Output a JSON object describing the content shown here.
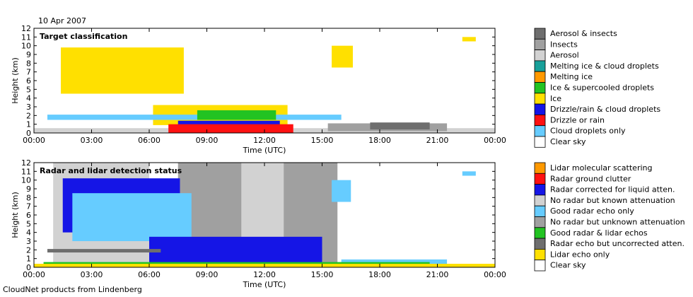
{
  "header": {
    "date": "10 Apr 2007"
  },
  "footer": {
    "credit": "CloudNet products from Lindenberg"
  },
  "chart_data": [
    {
      "type": "heatmap",
      "title": "Target classification",
      "xlabel": "Time (UTC)",
      "ylabel": "Height (km)",
      "xlim": [
        0,
        24
      ],
      "ylim": [
        0,
        12
      ],
      "x_ticks": [
        "00:00",
        "03:00",
        "06:00",
        "09:00",
        "12:00",
        "15:00",
        "18:00",
        "21:00",
        "00:00"
      ],
      "y_ticks": [
        "0",
        "1",
        "2",
        "3",
        "4",
        "5",
        "6",
        "7",
        "8",
        "9",
        "10",
        "11",
        "12"
      ],
      "legend": [
        {
          "label": "Aerosol & insects",
          "color": "#6e6e6e"
        },
        {
          "label": "Insects",
          "color": "#a0a0a0"
        },
        {
          "label": "Aerosol",
          "color": "#d2d2d2"
        },
        {
          "label": "Melting ice & cloud droplets",
          "color": "#18a09a"
        },
        {
          "label": "Melting ice",
          "color": "#ff9900"
        },
        {
          "label": "Ice & supercooled droplets",
          "color": "#22c322"
        },
        {
          "label": "Ice",
          "color": "#ffe000"
        },
        {
          "label": "Drizzle/rain & cloud droplets",
          "color": "#1515e6"
        },
        {
          "label": "Drizzle or rain",
          "color": "#ff1111"
        },
        {
          "label": "Cloud droplets only",
          "color": "#66ccff"
        },
        {
          "label": "Clear sky",
          "color": "#ffffff"
        }
      ],
      "regions": [
        {
          "class": "Aerosol",
          "t0": 0.0,
          "t1": 24.0,
          "h0": 0.05,
          "h1": 0.55
        },
        {
          "class": "Ice",
          "t0": 1.4,
          "t1": 7.8,
          "h0": 4.5,
          "h1": 9.8
        },
        {
          "class": "Ice",
          "t0": 6.2,
          "t1": 13.2,
          "h0": 0.9,
          "h1": 3.2
        },
        {
          "class": "Ice",
          "t0": 15.5,
          "t1": 16.6,
          "h0": 7.5,
          "h1": 10.0
        },
        {
          "class": "Ice",
          "t0": 22.3,
          "t1": 23.0,
          "h0": 10.5,
          "h1": 11.0
        },
        {
          "class": "Cloud droplets only",
          "t0": 0.7,
          "t1": 16.0,
          "h0": 1.5,
          "h1": 2.1
        },
        {
          "class": "Drizzle/rain & cloud droplets",
          "t0": 7.5,
          "t1": 12.8,
          "h0": 0.3,
          "h1": 1.4
        },
        {
          "class": "Drizzle or rain",
          "t0": 7.0,
          "t1": 13.5,
          "h0": 0.0,
          "h1": 1.0
        },
        {
          "class": "Ice & supercooled droplets",
          "t0": 8.5,
          "t1": 12.6,
          "h0": 1.5,
          "h1": 2.6
        },
        {
          "class": "Insects",
          "t0": 15.3,
          "t1": 21.5,
          "h0": 0.2,
          "h1": 1.1
        },
        {
          "class": "Aerosol & insects",
          "t0": 17.5,
          "t1": 20.6,
          "h0": 0.4,
          "h1": 1.2
        }
      ]
    },
    {
      "type": "heatmap",
      "title": "Radar and lidar detection status",
      "xlabel": "Time (UTC)",
      "ylabel": "Height (km)",
      "xlim": [
        0,
        24
      ],
      "ylim": [
        0,
        12
      ],
      "x_ticks": [
        "00:00",
        "03:00",
        "06:00",
        "09:00",
        "12:00",
        "15:00",
        "18:00",
        "21:00",
        "00:00"
      ],
      "y_ticks": [
        "0",
        "1",
        "2",
        "3",
        "4",
        "5",
        "6",
        "7",
        "8",
        "9",
        "10",
        "11",
        "12"
      ],
      "legend": [
        {
          "label": "Lidar molecular scattering",
          "color": "#ff9900"
        },
        {
          "label": "Radar ground clutter",
          "color": "#ff1111"
        },
        {
          "label": "Radar corrected for liquid atten.",
          "color": "#1515e6"
        },
        {
          "label": "No radar but known attenuation",
          "color": "#d2d2d2"
        },
        {
          "label": "Good radar echo only",
          "color": "#66ccff"
        },
        {
          "label": "No radar but unknown attenuation",
          "color": "#a0a0a0"
        },
        {
          "label": "Good radar & lidar echos",
          "color": "#22c322"
        },
        {
          "label": "Radar echo but uncorrected atten.",
          "color": "#6e6e6e"
        },
        {
          "label": "Lidar echo only",
          "color": "#ffe000"
        },
        {
          "label": "Clear sky",
          "color": "#ffffff"
        }
      ],
      "regions": [
        {
          "class": "No radar but known attenuation",
          "t0": 1.0,
          "t1": 6.0,
          "h0": 0.0,
          "h1": 12.0
        },
        {
          "class": "No radar but unknown attenuation",
          "t0": 7.5,
          "t1": 10.8,
          "h0": 0.0,
          "h1": 12.0
        },
        {
          "class": "No radar but known attenuation",
          "t0": 10.8,
          "t1": 13.0,
          "h0": 0.0,
          "h1": 12.0
        },
        {
          "class": "No radar but unknown attenuation",
          "t0": 13.0,
          "t1": 15.8,
          "h0": 0.0,
          "h1": 12.0
        },
        {
          "class": "Radar corrected for liquid atten.",
          "t0": 1.5,
          "t1": 7.6,
          "h0": 4.0,
          "h1": 10.2
        },
        {
          "class": "Good radar echo only",
          "t0": 2.0,
          "t1": 8.2,
          "h0": 3.0,
          "h1": 8.5
        },
        {
          "class": "Radar corrected for liquid atten.",
          "t0": 6.0,
          "t1": 15.0,
          "h0": 0.4,
          "h1": 3.5
        },
        {
          "class": "Good radar echo only",
          "t0": 15.5,
          "t1": 16.5,
          "h0": 7.5,
          "h1": 10.0
        },
        {
          "class": "Good radar echo only",
          "t0": 22.3,
          "t1": 23.0,
          "h0": 10.5,
          "h1": 11.0
        },
        {
          "class": "Good radar echo only",
          "t0": 16.0,
          "t1": 21.5,
          "h0": 0.3,
          "h1": 0.9
        },
        {
          "class": "Radar echo but uncorrected atten.",
          "t0": 0.7,
          "t1": 6.6,
          "h0": 1.7,
          "h1": 2.1
        },
        {
          "class": "Good radar & lidar echos",
          "t0": 0.5,
          "t1": 20.6,
          "h0": 0.1,
          "h1": 0.6
        },
        {
          "class": "Lidar echo only",
          "t0": 0.0,
          "t1": 24.0,
          "h0": 0.0,
          "h1": 0.4
        }
      ]
    }
  ]
}
